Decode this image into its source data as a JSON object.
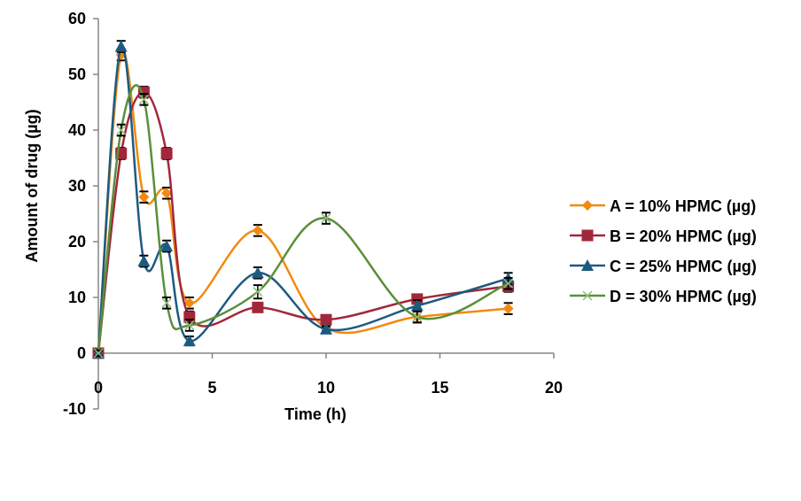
{
  "chart_data": {
    "type": "line",
    "title": "",
    "xlabel": "Time (h)",
    "ylabel": "Amount of drug (µg)",
    "xlim": [
      0,
      20
    ],
    "ylim": [
      -10,
      60
    ],
    "xticks": [
      0,
      5,
      10,
      15,
      20
    ],
    "yticks": [
      -10,
      0,
      10,
      20,
      30,
      40,
      50,
      60
    ],
    "grid": false,
    "legend_position": "right",
    "smooth": true,
    "error_bars": true,
    "x": [
      0,
      1,
      2,
      3,
      4,
      7,
      10,
      14,
      18
    ],
    "series": [
      {
        "name": "A = 10% HPMC (µg)",
        "color": "#f28a10",
        "marker": "diamond",
        "values": [
          0,
          53.5,
          28,
          28.7,
          9,
          22,
          4.5,
          6.5,
          8
        ],
        "error": [
          0.5,
          1,
          1,
          1,
          1,
          1,
          0.5,
          1,
          1
        ]
      },
      {
        "name": "B = 20% HPMC (µg)",
        "color": "#a0283a",
        "marker": "square",
        "values": [
          0,
          35.8,
          46.8,
          35.8,
          6.5,
          8.2,
          6,
          9.7,
          12
        ],
        "error": [
          0.5,
          1,
          1,
          1,
          1,
          0.8,
          0.8,
          0.8,
          1
        ]
      },
      {
        "name": "C = 25% HPMC (µg)",
        "color": "#1d5a80",
        "marker": "triangle",
        "values": [
          0,
          55,
          16.5,
          19.2,
          2.2,
          14.4,
          4.3,
          8.5,
          13.4
        ],
        "error": [
          0.5,
          1,
          1,
          1,
          0.8,
          1,
          0.5,
          1,
          1
        ]
      },
      {
        "name": "D = 30% HPMC (µg)",
        "color": "#5a8f3a",
        "marker": "x",
        "values": [
          0,
          40,
          45.5,
          9,
          5,
          11,
          24.2,
          6.5,
          12.5
        ],
        "error": [
          0.5,
          1,
          1,
          1,
          1,
          1.2,
          1,
          1,
          1
        ]
      }
    ]
  }
}
